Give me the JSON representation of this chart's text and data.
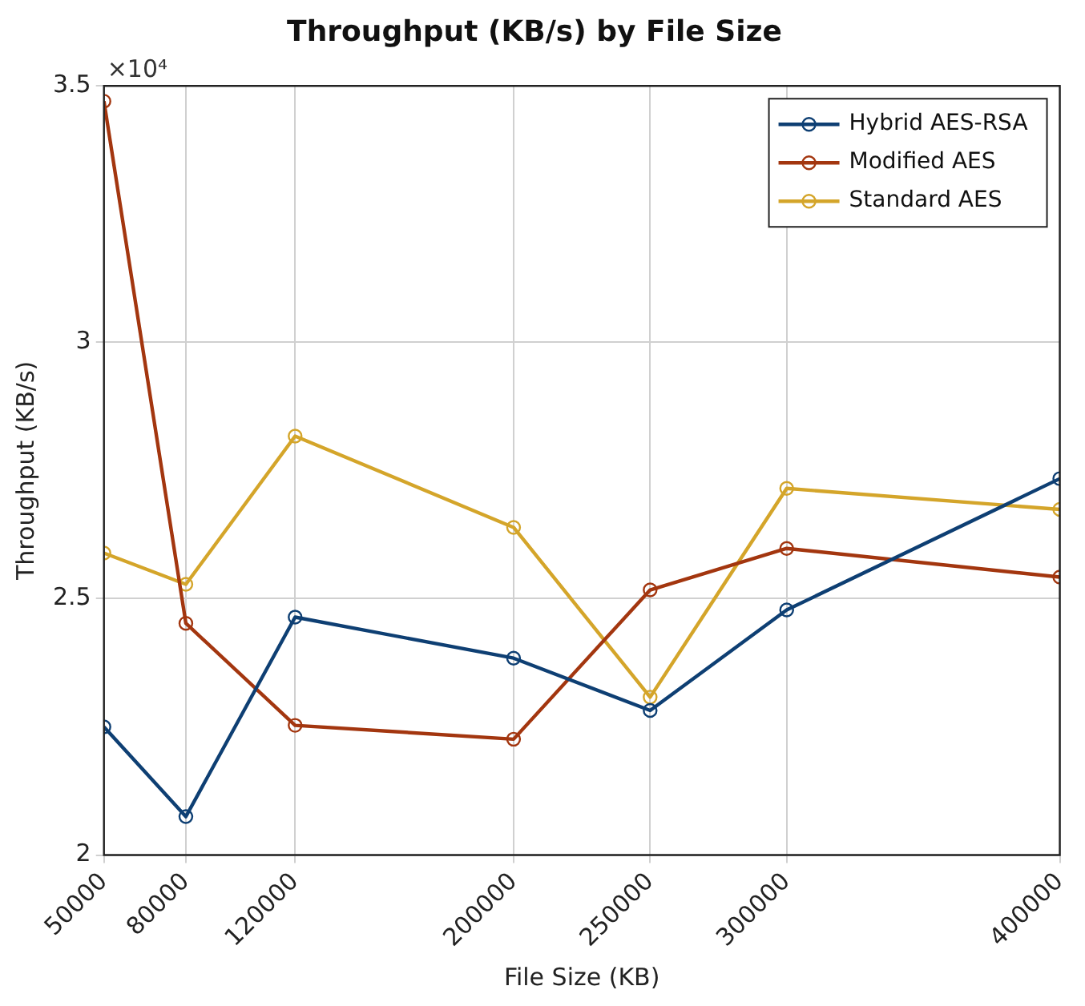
{
  "chart_data": {
    "type": "line",
    "title": "Throughput (KB/s) by File Size",
    "xlabel": "File Size (KB)",
    "ylabel": "Throughput (KB/s)",
    "annotations": [
      "×10⁴"
    ],
    "x": [
      50000,
      80000,
      120000,
      200000,
      250000,
      300000,
      400000
    ],
    "series": [
      {
        "name": "Hybrid AES-RSA",
        "color": "#0e3f73",
        "values": [
          2.25,
          2.075,
          2.464,
          2.384,
          2.282,
          2.478,
          2.734
        ]
      },
      {
        "name": "Modified AES",
        "color": "#a3360f",
        "values": [
          3.47,
          2.452,
          2.253,
          2.226,
          2.517,
          2.598,
          2.542
        ]
      },
      {
        "name": "Standard AES",
        "color": "#d4a52a",
        "values": [
          2.589,
          2.528,
          2.817,
          2.639,
          2.308,
          2.715,
          2.674
        ]
      }
    ],
    "xlim": [
      50000,
      400000
    ],
    "xticks": [
      50000,
      80000,
      120000,
      200000,
      250000,
      300000,
      400000
    ],
    "ylim": [
      2,
      3.5
    ],
    "yticks": [
      2,
      2.5,
      3,
      3.5
    ],
    "grid": true,
    "legend": "top right",
    "marker": "circle",
    "line_style": "solid"
  }
}
